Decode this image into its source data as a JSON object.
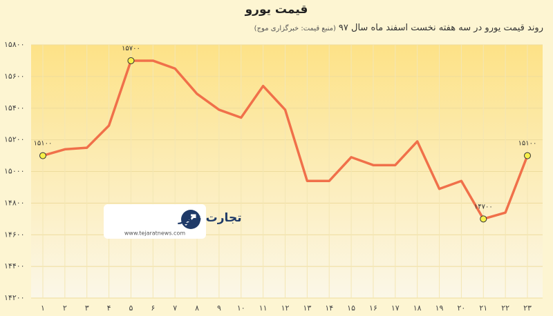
{
  "chart_data": {
    "type": "line",
    "title": "قیمت یورو",
    "subtitle": "روند قیمت یورو در سه هفته نخست اسفند ماه سال ۹۷",
    "source": "(منبع قیمت: خبرگزاری موج)",
    "categories": [
      "۱",
      "۲",
      "۳",
      "۴",
      "۵",
      "۶",
      "۷",
      "۸",
      "۹",
      "۱۰",
      "۱۱",
      "۱۲",
      "۱۳",
      "۱۴",
      "۱۵",
      "۱۶",
      "۱۷",
      "۱۸",
      "۱۹",
      "۲۰",
      "۲۱",
      "۲۲",
      "۲۳"
    ],
    "series": [
      {
        "name": "قیمت یورو",
        "color": "#f0704a",
        "values": [
          15100,
          15140,
          15150,
          15290,
          15700,
          15700,
          15650,
          15490,
          15390,
          15340,
          15540,
          15390,
          14940,
          14940,
          15090,
          15040,
          15040,
          15190,
          14890,
          14940,
          14700,
          14740,
          15100
        ],
        "value_labels": [
          "۱۵۱۰۰",
          null,
          null,
          null,
          "۱۵۷۰۰",
          null,
          null,
          null,
          null,
          null,
          null,
          null,
          null,
          null,
          null,
          null,
          null,
          null,
          null,
          null,
          "۱۴۷۰۰",
          null,
          "۱۵۱۰۰"
        ]
      }
    ],
    "ylim": [
      14200,
      15800
    ],
    "yticks": [
      {
        "value": 14200,
        "label": "۱۴۲۰۰"
      },
      {
        "value": 14400,
        "label": "۱۴۴۰۰"
      },
      {
        "value": 14600,
        "label": "۱۴۶۰۰"
      },
      {
        "value": 14800,
        "label": "۱۴۸۰۰"
      },
      {
        "value": 15000,
        "label": "۱۵۰۰۰"
      },
      {
        "value": 15200,
        "label": "۱۵۲۰۰"
      },
      {
        "value": 15400,
        "label": "۱۵۴۰۰"
      },
      {
        "value": 15600,
        "label": "۱۵۶۰۰"
      },
      {
        "value": 15800,
        "label": "۱۵۸۰۰"
      }
    ],
    "grid": true,
    "watermark": {
      "name": "تجارت نیوز",
      "url": "www.tejaratnews.com"
    }
  }
}
